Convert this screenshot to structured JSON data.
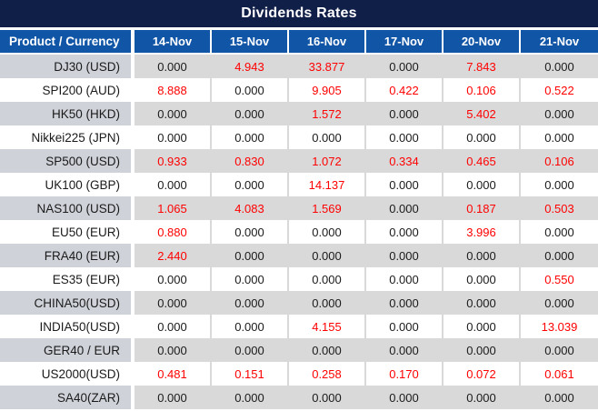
{
  "title": "Dividends Rates",
  "colors": {
    "title_bar_bg": "#101f48",
    "header_bg": "#1155a6",
    "row_gray_bg": "#d9d9d9",
    "row_gray_product_bg": "#cfd3d9",
    "row_white_bg": "#ffffff",
    "zero_value_text": "#1a1a1a",
    "nonzero_value_text": "#ff0000",
    "header_text": "#ffffff"
  },
  "table": {
    "product_header": "Product / Currency",
    "date_headers": [
      "14-Nov",
      "15-Nov",
      "16-Nov",
      "17-Nov",
      "20-Nov",
      "21-Nov"
    ],
    "rows": [
      {
        "product": "DJ30 (USD)",
        "values": [
          "0.000",
          "4.943",
          "33.877",
          "0.000",
          "7.843",
          "0.000"
        ]
      },
      {
        "product": "SPI200 (AUD)",
        "values": [
          "8.888",
          "0.000",
          "9.905",
          "0.422",
          "0.106",
          "0.522"
        ]
      },
      {
        "product": "HK50 (HKD)",
        "values": [
          "0.000",
          "0.000",
          "1.572",
          "0.000",
          "5.402",
          "0.000"
        ]
      },
      {
        "product": "Nikkei225 (JPN)",
        "values": [
          "0.000",
          "0.000",
          "0.000",
          "0.000",
          "0.000",
          "0.000"
        ]
      },
      {
        "product": "SP500 (USD)",
        "values": [
          "0.933",
          "0.830",
          "1.072",
          "0.334",
          "0.465",
          "0.106"
        ]
      },
      {
        "product": "UK100 (GBP)",
        "values": [
          "0.000",
          "0.000",
          "14.137",
          "0.000",
          "0.000",
          "0.000"
        ]
      },
      {
        "product": "NAS100 (USD)",
        "values": [
          "1.065",
          "4.083",
          "1.569",
          "0.000",
          "0.187",
          "0.503"
        ]
      },
      {
        "product": "EU50 (EUR)",
        "values": [
          "0.880",
          "0.000",
          "0.000",
          "0.000",
          "3.996",
          "0.000"
        ]
      },
      {
        "product": "FRA40 (EUR)",
        "values": [
          "2.440",
          "0.000",
          "0.000",
          "0.000",
          "0.000",
          "0.000"
        ]
      },
      {
        "product": "ES35 (EUR)",
        "values": [
          "0.000",
          "0.000",
          "0.000",
          "0.000",
          "0.000",
          "0.550"
        ]
      },
      {
        "product": "CHINA50(USD)",
        "values": [
          "0.000",
          "0.000",
          "0.000",
          "0.000",
          "0.000",
          "0.000"
        ]
      },
      {
        "product": "INDIA50(USD)",
        "values": [
          "0.000",
          "0.000",
          "4.155",
          "0.000",
          "0.000",
          "13.039"
        ]
      },
      {
        "product": "GER40 / EUR",
        "values": [
          "0.000",
          "0.000",
          "0.000",
          "0.000",
          "0.000",
          "0.000"
        ]
      },
      {
        "product": "US2000(USD)",
        "values": [
          "0.481",
          "0.151",
          "0.258",
          "0.170",
          "0.072",
          "0.061"
        ]
      },
      {
        "product": "SA40(ZAR)",
        "values": [
          "0.000",
          "0.000",
          "0.000",
          "0.000",
          "0.000",
          "0.000"
        ]
      }
    ]
  }
}
